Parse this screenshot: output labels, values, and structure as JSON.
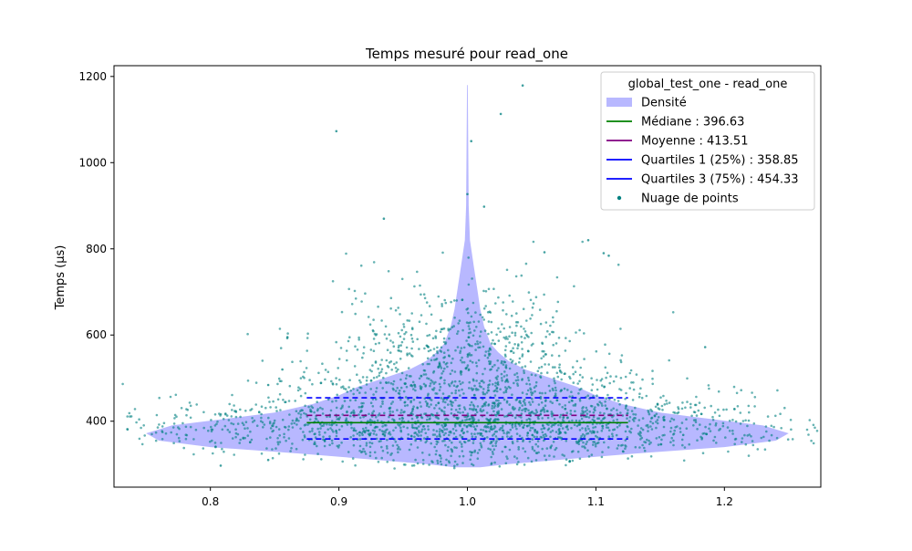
{
  "chart_data": {
    "type": "scatter",
    "title": "Temps mesuré pour read_one",
    "xlabel": "",
    "ylabel": "Temps (µs)",
    "xlim": [
      0.725,
      1.275
    ],
    "ylim": [
      247,
      1225
    ],
    "x_ticks": [
      0.8,
      0.9,
      1.0,
      1.1,
      1.2
    ],
    "x_tick_labels": [
      "0.8",
      "0.9",
      "1.0",
      "1.1",
      "1.2"
    ],
    "y_ticks": [
      400,
      600,
      800,
      1000,
      1200
    ],
    "y_tick_labels": [
      "400",
      "600",
      "800",
      "1000",
      "1200"
    ],
    "grid": false,
    "legend": {
      "title": "global_test_one - read_one",
      "placement": "top-right",
      "entries": [
        {
          "label": "Densité",
          "color": "#b8b8ff",
          "kind": "patch"
        },
        {
          "label": "Médiane : 396.63",
          "color": "#008000",
          "kind": "line"
        },
        {
          "label": "Moyenne : 413.51",
          "color": "#800080",
          "kind": "line"
        },
        {
          "label": "Quartiles 1 (25%) : 358.85",
          "color": "#0000ff",
          "kind": "line"
        },
        {
          "label": "Quartiles 3 (75%) : 454.33",
          "color": "#0000ff",
          "kind": "line"
        },
        {
          "label": "Nuage de points",
          "color": "#008080",
          "kind": "marker"
        }
      ]
    },
    "stats": {
      "median": 396.63,
      "mean": 413.51,
      "q1": 358.85,
      "q3": 454.33,
      "stat_line_x_range": [
        0.875,
        1.125
      ]
    },
    "violin": {
      "color": "#b8b8ff",
      "center_x": 1.0,
      "profile": [
        {
          "y": 293,
          "halfwidth": 0.01
        },
        {
          "y": 300,
          "halfwidth": 0.03
        },
        {
          "y": 310,
          "halfwidth": 0.07
        },
        {
          "y": 325,
          "halfwidth": 0.13
        },
        {
          "y": 340,
          "halfwidth": 0.2
        },
        {
          "y": 355,
          "halfwidth": 0.24
        },
        {
          "y": 372,
          "halfwidth": 0.25
        },
        {
          "y": 390,
          "halfwidth": 0.23
        },
        {
          "y": 405,
          "halfwidth": 0.19
        },
        {
          "y": 420,
          "halfwidth": 0.15
        },
        {
          "y": 440,
          "halfwidth": 0.12
        },
        {
          "y": 460,
          "halfwidth": 0.1
        },
        {
          "y": 480,
          "halfwidth": 0.085
        },
        {
          "y": 500,
          "halfwidth": 0.065
        },
        {
          "y": 520,
          "halfwidth": 0.045
        },
        {
          "y": 540,
          "halfwidth": 0.032
        },
        {
          "y": 560,
          "halfwidth": 0.024
        },
        {
          "y": 580,
          "halfwidth": 0.018
        },
        {
          "y": 620,
          "halfwidth": 0.013
        },
        {
          "y": 660,
          "halfwidth": 0.01
        },
        {
          "y": 700,
          "halfwidth": 0.008
        },
        {
          "y": 760,
          "halfwidth": 0.005
        },
        {
          "y": 820,
          "halfwidth": 0.002
        },
        {
          "y": 900,
          "halfwidth": 0.001
        },
        {
          "y": 1180,
          "halfwidth": 0.0003
        }
      ]
    },
    "scatter": {
      "color": "#008080",
      "outliers": [
        {
          "x": 0.808,
          "y": 297
        },
        {
          "x": 0.898,
          "y": 1073
        },
        {
          "x": 1.003,
          "y": 1050
        },
        {
          "x": 1.026,
          "y": 1113
        },
        {
          "x": 1.043,
          "y": 1179
        },
        {
          "x": 1.013,
          "y": 898
        },
        {
          "x": 0.935,
          "y": 870
        },
        {
          "x": 1.0,
          "y": 927
        },
        {
          "x": 1.094,
          "y": 820
        },
        {
          "x": 1.106,
          "y": 790
        },
        {
          "x": 1.11,
          "y": 784
        },
        {
          "x": 1.06,
          "y": 792
        },
        {
          "x": 1.185,
          "y": 572
        },
        {
          "x": 1.186,
          "y": 370
        },
        {
          "x": 0.86,
          "y": 595
        },
        {
          "x": 0.845,
          "y": 310
        },
        {
          "x": 1.168,
          "y": 368
        },
        {
          "x": 1.148,
          "y": 440
        },
        {
          "x": 0.845,
          "y": 484
        },
        {
          "x": 0.856,
          "y": 520
        }
      ]
    }
  }
}
